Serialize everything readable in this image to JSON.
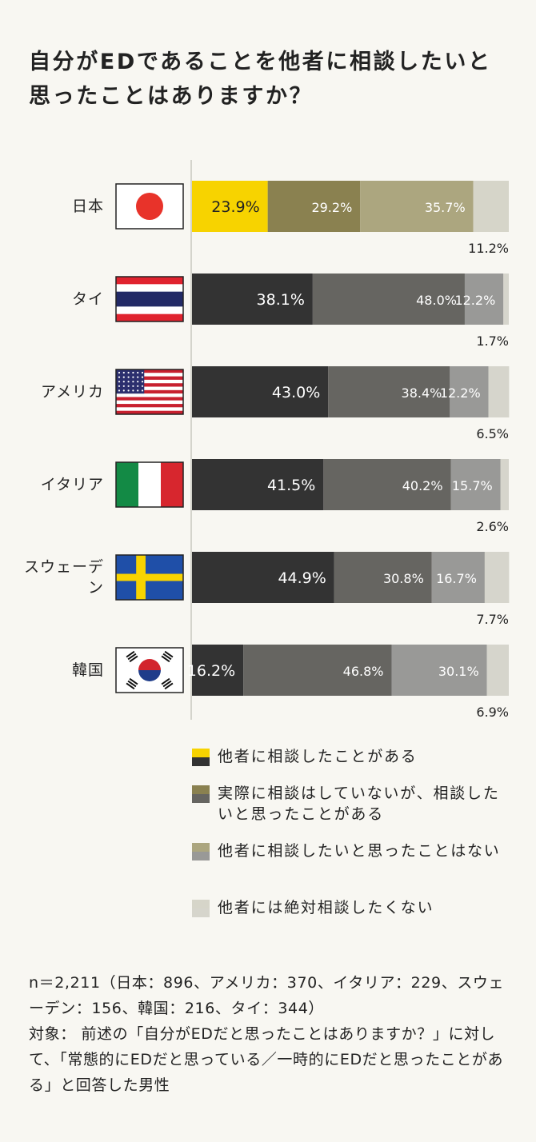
{
  "chart_data": {
    "type": "stacked-bar-horizontal",
    "title": "自分がEDであることを他者に相談したいと思ったことはありますか？",
    "categories": [
      "日本",
      "タイ",
      "アメリカ",
      "イタリア",
      "スウェーデン",
      "韓国"
    ],
    "xlim": [
      0,
      100
    ],
    "series": [
      {
        "name": "他者に相談したことがある",
        "colors": [
          "#f7d300",
          "#333333",
          "#333333",
          "#333333",
          "#333333",
          "#333333"
        ],
        "values": [
          23.9,
          38.1,
          43.0,
          41.5,
          44.9,
          16.2
        ],
        "value_labels": [
          "23.9%",
          "38.1%",
          "43.0%",
          "41.5%",
          "44.9%",
          "16.2%"
        ]
      },
      {
        "name": "実際に相談はしていないが、相談したいと思ったことがある",
        "colors": [
          "#8a8150",
          "#666561",
          "#666561",
          "#666561",
          "#666561",
          "#666561"
        ],
        "values": [
          29.2,
          48.0,
          38.4,
          40.2,
          30.8,
          46.8
        ],
        "value_labels": [
          "29.2%",
          "48.0%",
          "38.4%",
          "40.2%",
          "30.8%",
          "46.8%"
        ]
      },
      {
        "name": "他者に相談したいと思ったことはない",
        "colors": [
          "#aca67f",
          "#999997",
          "#999997",
          "#999997",
          "#999997",
          "#999997"
        ],
        "values": [
          35.7,
          12.2,
          12.2,
          15.7,
          16.7,
          30.1
        ],
        "value_labels": [
          "35.7%",
          "12.2%",
          "12.2%",
          "15.7%",
          "16.7%",
          "30.1%"
        ]
      },
      {
        "name": "他者には絶対相談したくない",
        "colors": [
          "#d6d5c9",
          "#d6d5cc",
          "#d6d5cc",
          "#d6d5cc",
          "#d6d5cc",
          "#d6d5cc"
        ],
        "values": [
          11.2,
          1.7,
          6.5,
          2.6,
          7.7,
          6.9
        ],
        "value_labels": [
          "11.2%",
          "1.7%",
          "6.5%",
          "2.6%",
          "7.7%",
          "6.9%"
        ]
      }
    ],
    "notes": [
      "n＝2,211（日本：896、アメリカ：370、イタリア：229、スウェーデン：156、韓国：216、タイ：344）",
      "対象： 前述の「自分がEDだと思ったことはありますか？」に対して、「常態的にEDだと思っている／一時的にEDだと思ったことがある」と回答した男性"
    ]
  }
}
